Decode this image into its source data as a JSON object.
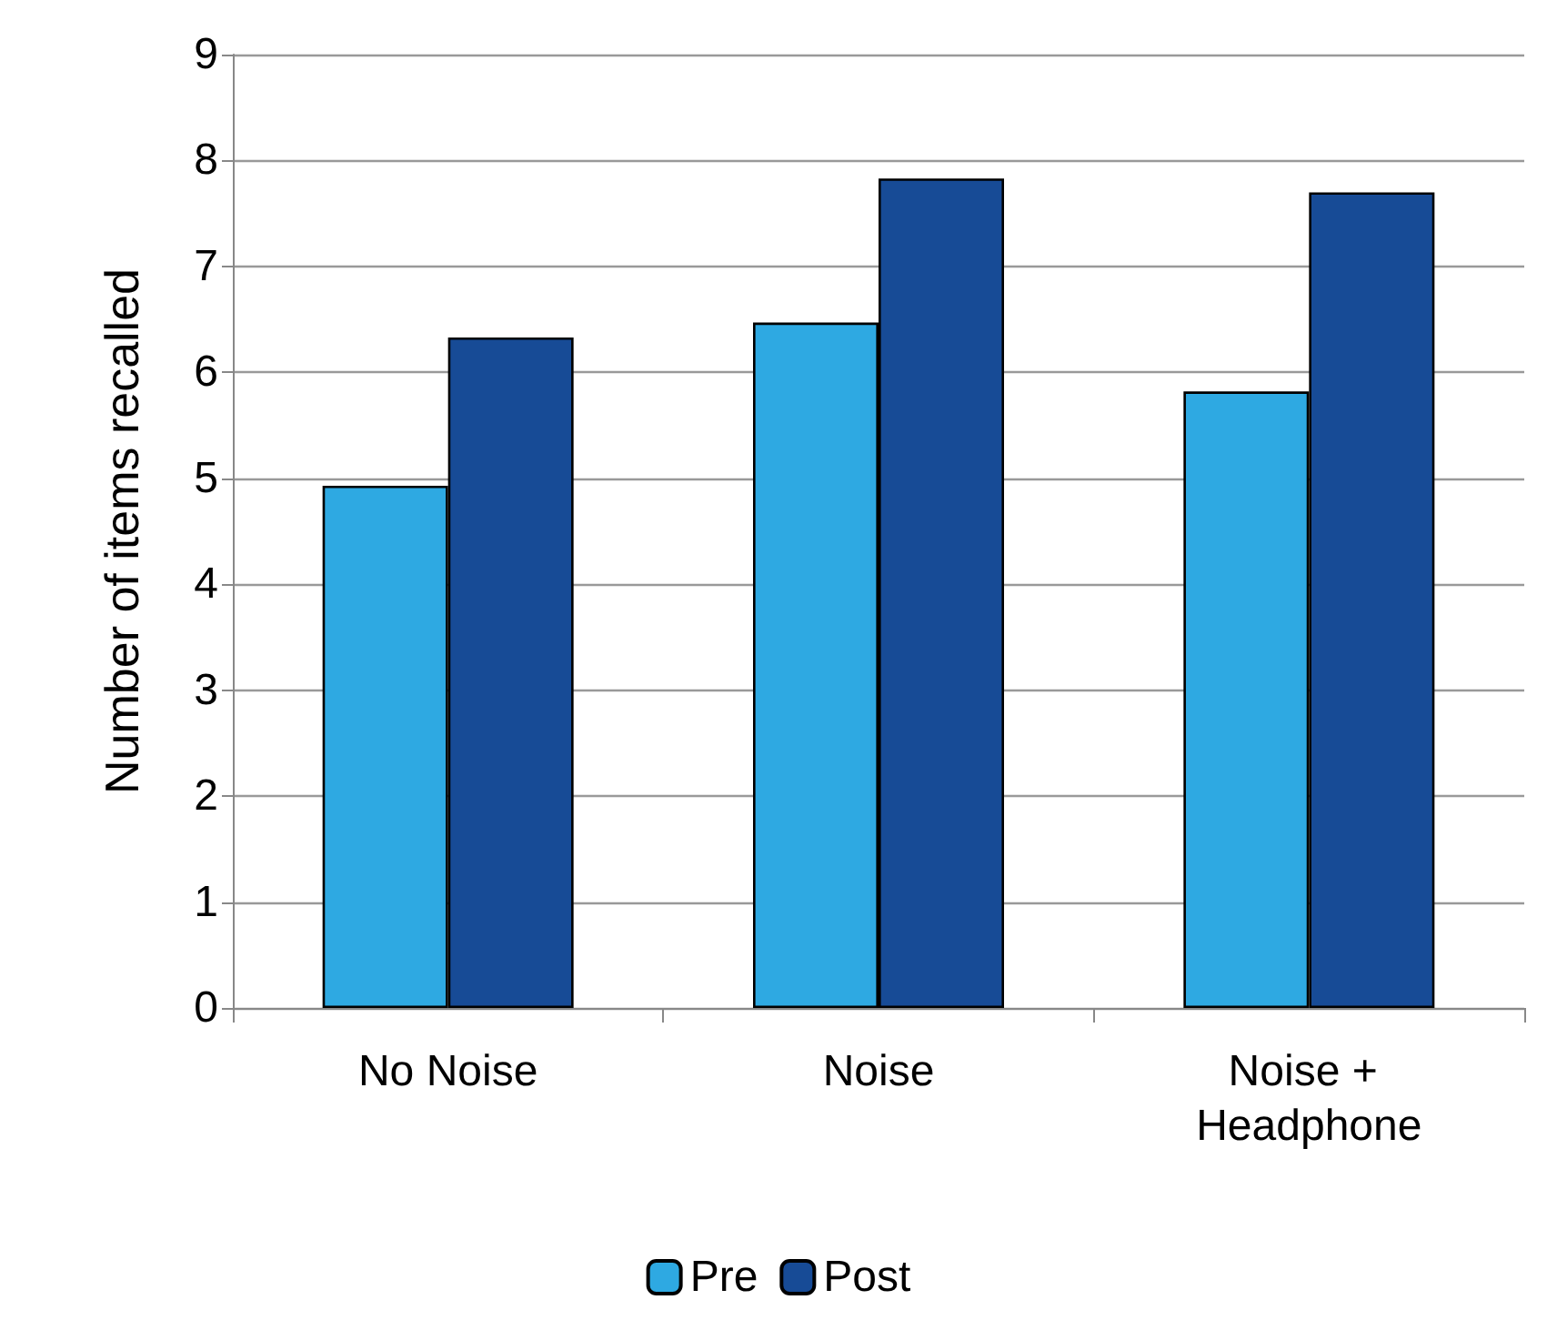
{
  "chart_data": {
    "type": "bar",
    "ylabel": "Number of items recalled",
    "categories": [
      "No Noise",
      "Noise",
      "Noise + Headphone"
    ],
    "series": [
      {
        "name": "Pre",
        "color": "#2ea9e2",
        "values": [
          4.93,
          6.47,
          5.82
        ]
      },
      {
        "name": "Post",
        "color": "#174b96",
        "values": [
          6.33,
          7.83,
          7.7
        ]
      }
    ],
    "ylim": [
      0,
      9
    ],
    "yticks": [
      0,
      1,
      2,
      3,
      4,
      5,
      6,
      7,
      8,
      9
    ],
    "grid": "y",
    "legend": "bottom"
  }
}
